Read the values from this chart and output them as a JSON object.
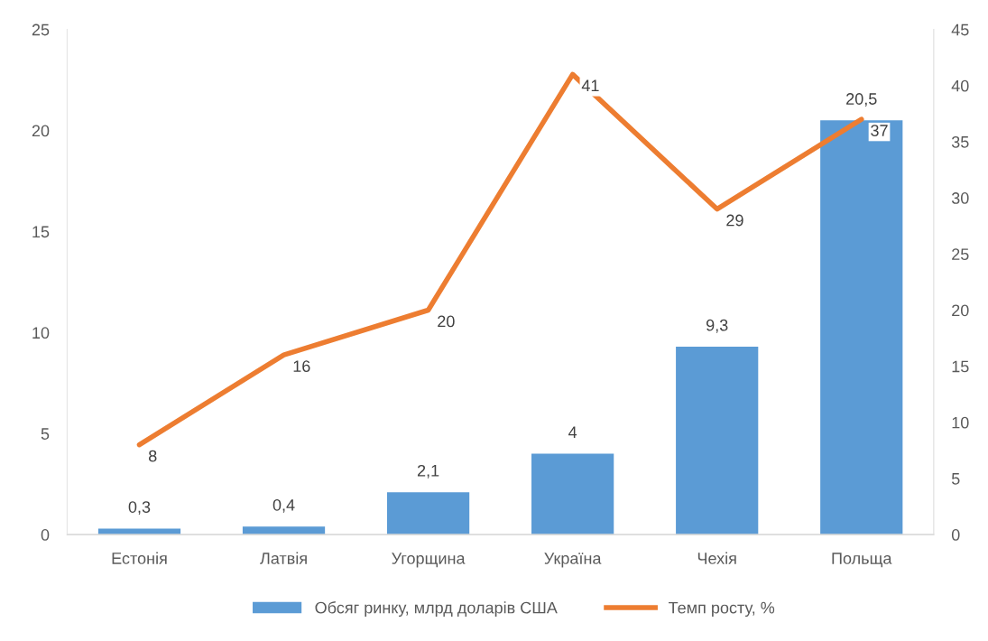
{
  "chart_data": {
    "type": "bar",
    "categories": [
      "Естонія",
      "Латвія",
      "Угорщина",
      "Україна",
      "Чехія",
      "Польща"
    ],
    "series": [
      {
        "name": "Обсяг ринку, млрд доларів США",
        "color": "#5b9bd5",
        "values": [
          0.3,
          0.4,
          2.1,
          4,
          9.3,
          20.5
        ],
        "value_labels": [
          "0,3",
          "0,4",
          "2,1",
          "4",
          "9,3",
          "20,5"
        ]
      },
      {
        "name": "Темп росту, %",
        "type": "line",
        "axis": "y2",
        "color": "#ed7d31",
        "values": [
          8,
          16,
          20,
          41,
          29,
          37
        ],
        "value_labels": [
          "8",
          "16",
          "20",
          "41",
          "29",
          "37"
        ]
      }
    ],
    "ylim": [
      0,
      25
    ],
    "yticks": [
      0,
      5,
      10,
      15,
      20,
      25
    ],
    "y2lim": [
      0,
      45
    ],
    "y2ticks": [
      0,
      5,
      10,
      15,
      20,
      25,
      30,
      35,
      40,
      45
    ],
    "grid": false,
    "legend": "bottom",
    "marker": "none"
  }
}
